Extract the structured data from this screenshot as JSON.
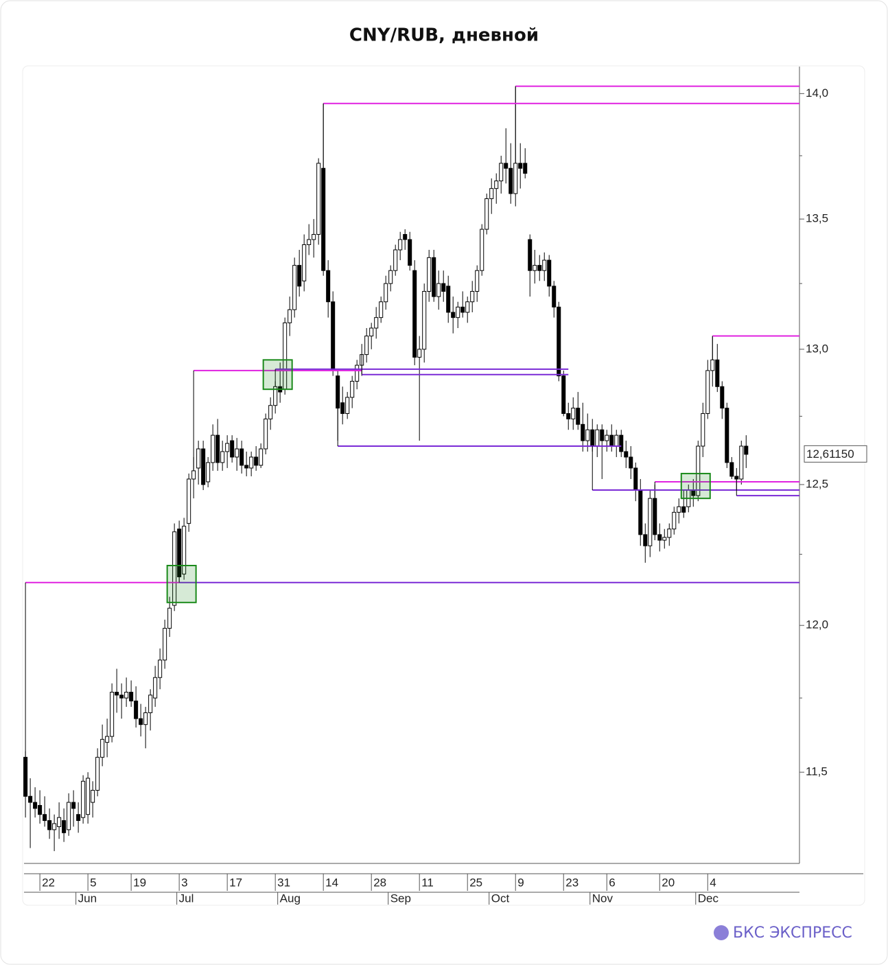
{
  "chart_data": {
    "type": "candlestick",
    "title": "CNY/RUB, дневной",
    "brand": "БКС ЭКСПРЕСС",
    "log_scale": true,
    "ylim": [
      11.2,
      14.11
    ],
    "xlim": [
      -0.3,
      161.1
    ],
    "yticks": [
      {
        "value": 11.5,
        "label": "11,5"
      },
      {
        "value": 12,
        "label": "12,0"
      },
      {
        "value": 12.5,
        "label": "12,5"
      },
      {
        "value": 13,
        "label": "13,0"
      },
      {
        "value": 13.5,
        "label": "13,5"
      },
      {
        "value": 14,
        "label": "14,0"
      }
    ],
    "minor_yticks": [
      11.75,
      12.25,
      12.75,
      13.25,
      13.75
    ],
    "xticks": [
      {
        "value": 3,
        "label": "22"
      },
      {
        "value": 13,
        "label": "5"
      },
      {
        "value": 22,
        "label": "19"
      },
      {
        "value": 32,
        "label": "3"
      },
      {
        "value": 42,
        "label": "17"
      },
      {
        "value": 52,
        "label": "31"
      },
      {
        "value": 62,
        "label": "14"
      },
      {
        "value": 72,
        "label": "28"
      },
      {
        "value": 82,
        "label": "11"
      },
      {
        "value": 92,
        "label": "25"
      },
      {
        "value": 102,
        "label": "9"
      },
      {
        "value": 112,
        "label": "23"
      },
      {
        "value": 121,
        "label": "6"
      },
      {
        "value": 132,
        "label": "20"
      },
      {
        "value": 142,
        "label": "4"
      }
    ],
    "month_ticks": [
      {
        "value": 11,
        "label": "Jun"
      },
      {
        "value": 32,
        "label": "Jul"
      },
      {
        "value": 53,
        "label": "Aug"
      },
      {
        "value": 76,
        "label": "Sep"
      },
      {
        "value": 97,
        "label": "Oct"
      },
      {
        "value": 118,
        "label": "Nov"
      },
      {
        "value": 140,
        "label": "Dec"
      }
    ],
    "last_price": {
      "value": 12.6115,
      "label": "12,61150"
    },
    "up_color": "#ffffff",
    "down_color": "#000000",
    "ohlc": [
      [
        11.55,
        11.57,
        11.35,
        11.42
      ],
      [
        11.42,
        11.48,
        11.25,
        11.4
      ],
      [
        11.4,
        11.45,
        11.35,
        11.38
      ],
      [
        11.39,
        11.44,
        11.33,
        11.36
      ],
      [
        11.36,
        11.42,
        11.32,
        11.34
      ],
      [
        11.34,
        11.38,
        11.28,
        11.31
      ],
      [
        11.31,
        11.36,
        11.24,
        11.33
      ],
      [
        11.32,
        11.4,
        11.28,
        11.35
      ],
      [
        11.34,
        11.38,
        11.27,
        11.3
      ],
      [
        11.31,
        11.43,
        11.29,
        11.4
      ],
      [
        11.4,
        11.44,
        11.32,
        11.38
      ],
      [
        11.36,
        11.4,
        11.3,
        11.34
      ],
      [
        11.35,
        11.49,
        11.33,
        11.47
      ],
      [
        11.36,
        11.5,
        11.33,
        11.48
      ],
      [
        11.4,
        11.47,
        11.35,
        11.44
      ],
      [
        11.44,
        11.58,
        11.42,
        11.55
      ],
      [
        11.55,
        11.66,
        11.52,
        11.61
      ],
      [
        11.6,
        11.68,
        11.55,
        11.62
      ],
      [
        11.62,
        11.8,
        11.6,
        11.77
      ],
      [
        11.77,
        11.85,
        11.7,
        11.76
      ],
      [
        11.76,
        11.8,
        11.68,
        11.75
      ],
      [
        11.75,
        11.82,
        11.72,
        11.77
      ],
      [
        11.77,
        11.81,
        11.72,
        11.74
      ],
      [
        11.74,
        11.79,
        11.65,
        11.68
      ],
      [
        11.68,
        11.73,
        11.62,
        11.66
      ],
      [
        11.66,
        11.72,
        11.58,
        11.7
      ],
      [
        11.7,
        11.78,
        11.64,
        11.76
      ],
      [
        11.75,
        11.86,
        11.72,
        11.82
      ],
      [
        11.82,
        11.92,
        11.78,
        11.88
      ],
      [
        11.88,
        12.02,
        11.85,
        11.99
      ],
      [
        11.99,
        12.1,
        11.96,
        12.06
      ],
      [
        12.07,
        12.36,
        12.05,
        12.33
      ],
      [
        12.34,
        12.37,
        12.15,
        12.17
      ],
      [
        12.18,
        12.38,
        12.16,
        12.35
      ],
      [
        12.36,
        12.54,
        12.33,
        12.52
      ],
      [
        12.52,
        12.6,
        12.45,
        12.55
      ],
      [
        12.56,
        12.66,
        12.5,
        12.63
      ],
      [
        12.63,
        12.66,
        12.48,
        12.5
      ],
      [
        12.51,
        12.6,
        12.49,
        12.58
      ],
      [
        12.58,
        12.72,
        12.55,
        12.68
      ],
      [
        12.68,
        12.74,
        12.55,
        12.58
      ],
      [
        12.58,
        12.66,
        12.55,
        12.62
      ],
      [
        12.62,
        12.68,
        12.56,
        12.65
      ],
      [
        12.66,
        12.68,
        12.58,
        12.6
      ],
      [
        12.6,
        12.67,
        12.55,
        12.63
      ],
      [
        12.63,
        12.66,
        12.54,
        12.57
      ],
      [
        12.57,
        12.62,
        12.53,
        12.56
      ],
      [
        12.56,
        12.62,
        12.53,
        12.6
      ],
      [
        12.6,
        12.64,
        12.55,
        12.57
      ],
      [
        12.57,
        12.65,
        12.56,
        12.63
      ],
      [
        12.63,
        12.76,
        12.61,
        12.74
      ],
      [
        12.74,
        12.82,
        12.7,
        12.79
      ],
      [
        12.79,
        12.88,
        12.76,
        12.86
      ],
      [
        12.86,
        12.95,
        12.8,
        12.84
      ],
      [
        12.85,
        13.12,
        12.83,
        13.1
      ],
      [
        13.1,
        13.2,
        13.05,
        13.15
      ],
      [
        13.15,
        13.35,
        13.12,
        13.32
      ],
      [
        13.32,
        13.38,
        13.2,
        13.24
      ],
      [
        13.26,
        13.44,
        13.22,
        13.4
      ],
      [
        13.4,
        13.48,
        13.36,
        13.42
      ],
      [
        13.42,
        13.5,
        13.35,
        13.44
      ],
      [
        13.44,
        13.74,
        13.4,
        13.72
      ],
      [
        13.7,
        13.96,
        13.28,
        13.3
      ],
      [
        13.3,
        13.34,
        13.12,
        13.18
      ],
      [
        13.18,
        13.22,
        12.9,
        12.92
      ],
      [
        12.9,
        12.92,
        12.66,
        12.78
      ],
      [
        12.8,
        12.86,
        12.72,
        12.76
      ],
      [
        12.76,
        12.84,
        12.74,
        12.82
      ],
      [
        12.82,
        12.9,
        12.78,
        12.88
      ],
      [
        12.88,
        12.96,
        12.85,
        12.94
      ],
      [
        12.94,
        13.02,
        12.9,
        12.98
      ],
      [
        12.98,
        13.08,
        12.95,
        13.05
      ],
      [
        13.05,
        13.1,
        13.0,
        13.08
      ],
      [
        13.08,
        13.16,
        13.04,
        13.12
      ],
      [
        13.12,
        13.2,
        13.1,
        13.18
      ],
      [
        13.18,
        13.28,
        13.15,
        13.25
      ],
      [
        13.25,
        13.32,
        13.22,
        13.3
      ],
      [
        13.3,
        13.4,
        13.28,
        13.38
      ],
      [
        13.38,
        13.45,
        13.34,
        13.42
      ],
      [
        13.44,
        13.46,
        13.38,
        13.42
      ],
      [
        13.42,
        13.45,
        13.3,
        13.32
      ],
      [
        13.3,
        13.34,
        12.94,
        12.97
      ],
      [
        12.97,
        13.05,
        12.66,
        13.0
      ],
      [
        13.0,
        13.25,
        12.95,
        13.22
      ],
      [
        13.22,
        13.38,
        13.18,
        13.35
      ],
      [
        13.35,
        13.38,
        13.18,
        13.2
      ],
      [
        13.2,
        13.3,
        13.15,
        13.25
      ],
      [
        13.25,
        13.3,
        13.18,
        13.22
      ],
      [
        13.24,
        13.28,
        13.1,
        13.14
      ],
      [
        13.14,
        13.2,
        13.06,
        13.12
      ],
      [
        13.12,
        13.18,
        13.08,
        13.16
      ],
      [
        13.16,
        13.22,
        13.12,
        13.14
      ],
      [
        13.14,
        13.2,
        13.1,
        13.18
      ],
      [
        13.18,
        13.26,
        13.14,
        13.22
      ],
      [
        13.22,
        13.32,
        13.18,
        13.3
      ],
      [
        13.3,
        13.48,
        13.28,
        13.46
      ],
      [
        13.46,
        13.6,
        13.44,
        13.58
      ],
      [
        13.58,
        13.66,
        13.52,
        13.62
      ],
      [
        13.62,
        13.68,
        13.56,
        13.65
      ],
      [
        13.65,
        13.75,
        13.6,
        13.72
      ],
      [
        13.72,
        13.86,
        13.64,
        13.7
      ],
      [
        13.7,
        13.8,
        13.56,
        13.6
      ],
      [
        13.6,
        14.03,
        13.55,
        13.72
      ],
      [
        13.72,
        13.8,
        13.62,
        13.7
      ],
      [
        13.72,
        13.78,
        13.66,
        13.68
      ],
      [
        13.42,
        13.44,
        13.2,
        13.3
      ],
      [
        13.3,
        13.38,
        13.25,
        13.32
      ],
      [
        13.32,
        13.36,
        13.26,
        13.3
      ],
      [
        13.3,
        13.37,
        13.26,
        13.34
      ],
      [
        13.34,
        13.36,
        13.2,
        13.24
      ],
      [
        13.24,
        13.26,
        13.12,
        13.16
      ],
      [
        13.16,
        13.18,
        12.88,
        12.9
      ],
      [
        12.9,
        12.92,
        12.75,
        12.76
      ],
      [
        12.76,
        12.8,
        12.7,
        12.74
      ],
      [
        12.74,
        12.82,
        12.7,
        12.78
      ],
      [
        12.78,
        12.84,
        12.7,
        12.72
      ],
      [
        12.72,
        12.8,
        12.62,
        12.66
      ],
      [
        12.66,
        12.76,
        12.62,
        12.7
      ],
      [
        12.7,
        12.74,
        12.62,
        12.64
      ],
      [
        12.64,
        12.72,
        12.6,
        12.7
      ],
      [
        12.7,
        12.72,
        12.52,
        12.66
      ],
      [
        12.66,
        12.7,
        12.62,
        12.68
      ],
      [
        12.68,
        12.72,
        12.62,
        12.64
      ],
      [
        12.64,
        12.7,
        12.6,
        12.68
      ],
      [
        12.68,
        12.7,
        12.6,
        12.62
      ],
      [
        12.62,
        12.66,
        12.56,
        12.6
      ],
      [
        12.6,
        12.64,
        12.52,
        12.56
      ],
      [
        12.56,
        12.58,
        12.44,
        12.48
      ],
      [
        12.48,
        12.52,
        12.28,
        12.32
      ],
      [
        12.32,
        12.36,
        12.22,
        12.28
      ],
      [
        12.28,
        12.48,
        12.24,
        12.45
      ],
      [
        12.45,
        12.5,
        12.3,
        12.32
      ],
      [
        12.32,
        12.36,
        12.26,
        12.3
      ],
      [
        12.3,
        12.34,
        12.27,
        12.31
      ],
      [
        12.31,
        12.36,
        12.28,
        12.34
      ],
      [
        12.34,
        12.42,
        12.32,
        12.4
      ],
      [
        12.4,
        12.45,
        12.36,
        12.42
      ],
      [
        12.42,
        12.48,
        12.38,
        12.4
      ],
      [
        12.42,
        12.5,
        12.4,
        12.48
      ],
      [
        12.48,
        12.52,
        12.42,
        12.46
      ],
      [
        12.46,
        12.66,
        12.44,
        12.64
      ],
      [
        12.64,
        12.8,
        12.6,
        12.76
      ],
      [
        12.76,
        12.96,
        12.74,
        12.92
      ],
      [
        12.92,
        13.05,
        12.86,
        12.96
      ],
      [
        12.96,
        13.02,
        12.84,
        12.86
      ],
      [
        12.86,
        12.88,
        12.74,
        12.78
      ],
      [
        12.78,
        12.8,
        12.56,
        12.58
      ],
      [
        12.58,
        12.6,
        12.52,
        12.53
      ],
      [
        12.53,
        12.56,
        12.48,
        12.52
      ],
      [
        12.52,
        12.66,
        12.5,
        12.64
      ],
      [
        12.64,
        12.68,
        12.56,
        12.61
      ]
    ],
    "levels": [
      {
        "value": 14.03,
        "color": "#e020e0",
        "from": 102
      },
      {
        "value": 13.96,
        "color": "#e020e0",
        "from": 62
      },
      {
        "value": 12.92,
        "color": "#e020e0",
        "from": 35,
        "to": 70
      },
      {
        "value": 12.925,
        "color": "#7a2ad6",
        "from": 52,
        "to": 113
      },
      {
        "value": 12.905,
        "color": "#7a2ad6",
        "from": 70,
        "to": 113
      },
      {
        "value": 12.64,
        "color": "#7a2ad6",
        "from": 65,
        "to": 124
      },
      {
        "value": 12.15,
        "color": "#e020e0",
        "from": 0,
        "to": 32
      },
      {
        "value": 12.15,
        "color": "#7a2ad6",
        "from": 32
      },
      {
        "value": 13.05,
        "color": "#e020e0",
        "from": 143
      },
      {
        "value": 12.51,
        "color": "#e020e0",
        "from": 131
      },
      {
        "value": 12.48,
        "color": "#7a2ad6",
        "from": 118
      },
      {
        "value": 12.46,
        "color": "#7a2ad6",
        "from": 148
      }
    ],
    "zones": [
      {
        "from": 30,
        "to": 35,
        "low": 12.08,
        "high": 12.21
      },
      {
        "from": 50,
        "to": 55,
        "low": 12.85,
        "high": 12.96
      },
      {
        "from": 137,
        "to": 142,
        "low": 12.45,
        "high": 12.54
      }
    ],
    "zone_color": "#1a8a1a"
  }
}
